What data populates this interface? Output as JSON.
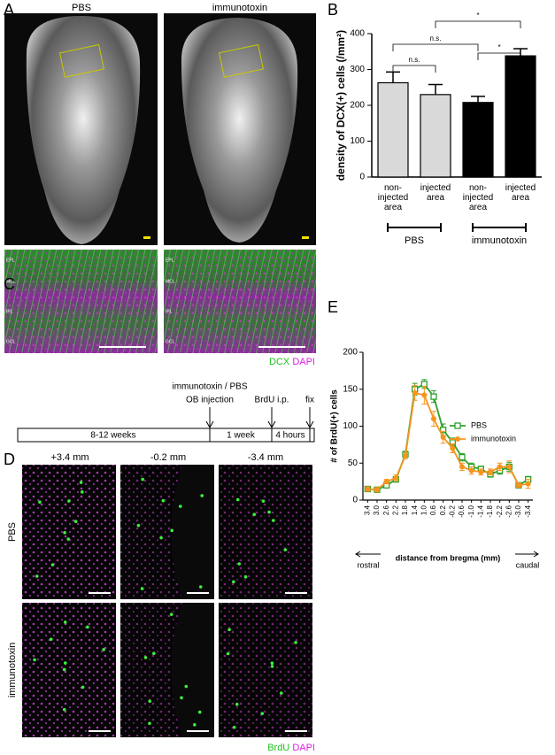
{
  "figure": {
    "panels": [
      "A",
      "B",
      "C",
      "D",
      "E"
    ],
    "panel_a": {
      "columns": [
        "PBS",
        "immunotoxin"
      ],
      "layers": [
        "EPL",
        "MCL",
        "IPL",
        "GCL"
      ],
      "stain": [
        "DCX",
        "DAPI"
      ]
    },
    "panel_c": {
      "treatment": "immunotoxin / PBS",
      "events": [
        "OB injection",
        "BrdU i.p.",
        "fix"
      ],
      "periods": [
        "8-12 weeks",
        "1 week",
        "4 hours"
      ]
    },
    "panel_d": {
      "columns": [
        "+3.4 mm",
        "-0.2 mm",
        "-3.4 mm"
      ],
      "rows": [
        "PBS",
        "immunotoxin"
      ],
      "stain": [
        "BrdU",
        "DAPI"
      ]
    }
  },
  "chart_data": [
    {
      "type": "bar",
      "ylabel": "density of DCX(+) cells (/mm²)",
      "categories": [
        "non-injected area",
        "injected area",
        "non-injected area",
        "injected area"
      ],
      "groups": [
        "PBS",
        "immunotoxin"
      ],
      "values": [
        263,
        230,
        208,
        338
      ],
      "errors": [
        30,
        28,
        17,
        20
      ],
      "colors": [
        "#d9d9d9",
        "#d9d9d9",
        "#000000",
        "#000000"
      ],
      "ylim": [
        0,
        400
      ],
      "yticks": [
        0,
        100,
        200,
        300,
        400
      ],
      "annotations": [
        "n.s.",
        "n.s.",
        "*",
        "*"
      ]
    },
    {
      "type": "line",
      "ylabel": "# of BrdU(+) cells",
      "xlabel": "distance from bregma (mm)",
      "x_annotations": [
        "rostral",
        "caudal"
      ],
      "categories": [
        "3.4",
        "3.0",
        "2.6",
        "2.2",
        "1.8",
        "1.4",
        "1.0",
        "0.6",
        "0.2",
        "-0.2",
        "-0.6",
        "-1.0",
        "-1.4",
        "-1.8",
        "-2.2",
        "-2.6",
        "-3.0",
        "-3.4"
      ],
      "series": [
        {
          "name": "PBS",
          "color": "#2ca02c",
          "marker": "open-square",
          "values": [
            15,
            14,
            20,
            28,
            62,
            150,
            157,
            140,
            95,
            78,
            58,
            45,
            42,
            35,
            40,
            45,
            20,
            28
          ],
          "errors": [
            3,
            3,
            3,
            3,
            4,
            8,
            6,
            8,
            8,
            6,
            5,
            5,
            4,
            4,
            5,
            6,
            3,
            4
          ]
        },
        {
          "name": "immunotoxin",
          "color": "#f7941d",
          "marker": "circle",
          "values": [
            15,
            14,
            25,
            30,
            60,
            145,
            142,
            110,
            85,
            70,
            45,
            40,
            38,
            38,
            45,
            45,
            20,
            22
          ],
          "errors": [
            3,
            3,
            3,
            4,
            4,
            10,
            12,
            10,
            8,
            6,
            5,
            5,
            4,
            4,
            5,
            8,
            3,
            6
          ]
        }
      ],
      "ylim": [
        0,
        200
      ],
      "yticks": [
        0,
        50,
        100,
        150,
        200
      ]
    }
  ]
}
